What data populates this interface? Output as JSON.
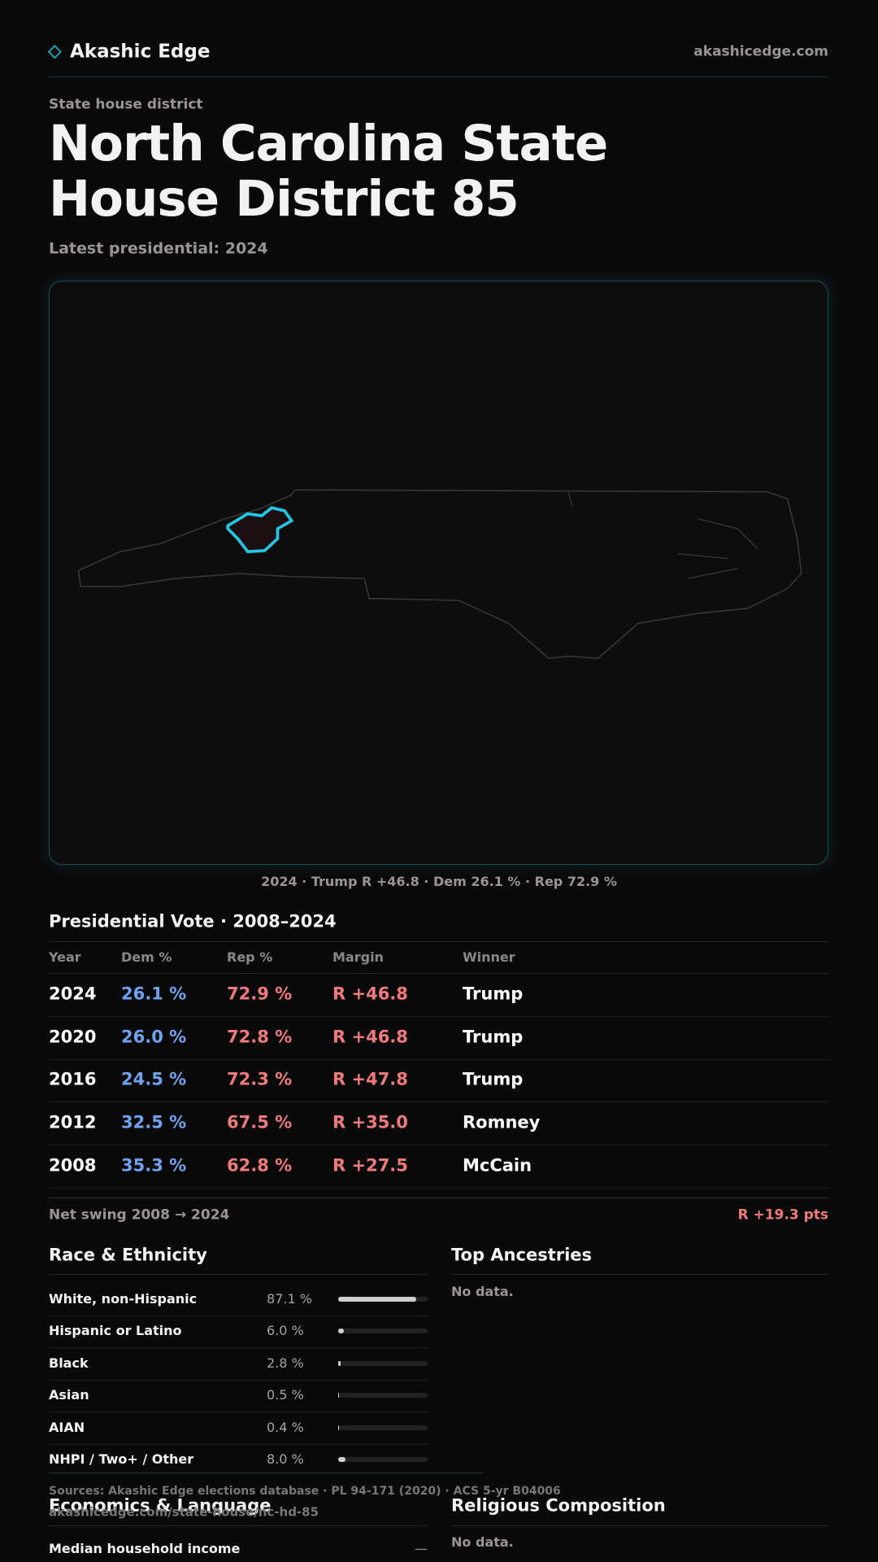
{
  "header": {
    "brand": "Akashic Edge",
    "domain": "akashicedge.com"
  },
  "kicker": "State house district",
  "title": "North Carolina State House District 85",
  "subtitle": "Latest presidential: 2024",
  "map_caption": "2024 · Trump R +46.8 · Dem 26.1 % · Rep 72.9 %",
  "table": {
    "title": "Presidential Vote · 2008–2024",
    "headers": [
      "Year",
      "Dem %",
      "Rep %",
      "Margin",
      "Winner"
    ],
    "rows": [
      [
        "2024",
        "26.1 %",
        "72.9 %",
        "R +46.8",
        "Trump"
      ],
      [
        "2020",
        "26.0 %",
        "72.8 %",
        "R +46.8",
        "Trump"
      ],
      [
        "2016",
        "24.5 %",
        "72.3 %",
        "R +47.8",
        "Trump"
      ],
      [
        "2012",
        "32.5 %",
        "67.5 %",
        "R +35.0",
        "Romney"
      ],
      [
        "2008",
        "35.3 %",
        "62.8 %",
        "R +27.5",
        "McCain"
      ]
    ]
  },
  "net_swing": {
    "label": "Net swing 2008 → 2024",
    "value": "R +19.3 pts"
  },
  "race": {
    "title": "Race & Ethnicity",
    "rows": [
      {
        "name": "White, non-Hispanic",
        "share": 87.1,
        "share_label": "87.1 %"
      },
      {
        "name": "Hispanic or Latino",
        "share": 6.0,
        "share_label": "6.0 %"
      },
      {
        "name": "Black",
        "share": 2.8,
        "share_label": "2.8 %"
      },
      {
        "name": "Asian",
        "share": 0.5,
        "share_label": "0.5 %"
      },
      {
        "name": "AIAN",
        "share": 0.4,
        "share_label": "0.4 %"
      },
      {
        "name": "NHPI / Two+ / Other",
        "share": 8.0,
        "share_label": "8.0 %"
      }
    ]
  },
  "ancestries": {
    "title": "Top Ancestries",
    "empty": "No data."
  },
  "footer": {
    "sources": "Sources: Akashic Edge elections database · PL 94-171 (2020) · ACS 5-yr B04006",
    "url": "akashicedge.com/state-house/nc-hd-85"
  },
  "economics": {
    "title": "Economics & Language",
    "rows": [
      {
        "name": "Median household income",
        "value": "—"
      }
    ]
  },
  "religion": {
    "title": "Religious Composition",
    "empty": "No data."
  }
}
